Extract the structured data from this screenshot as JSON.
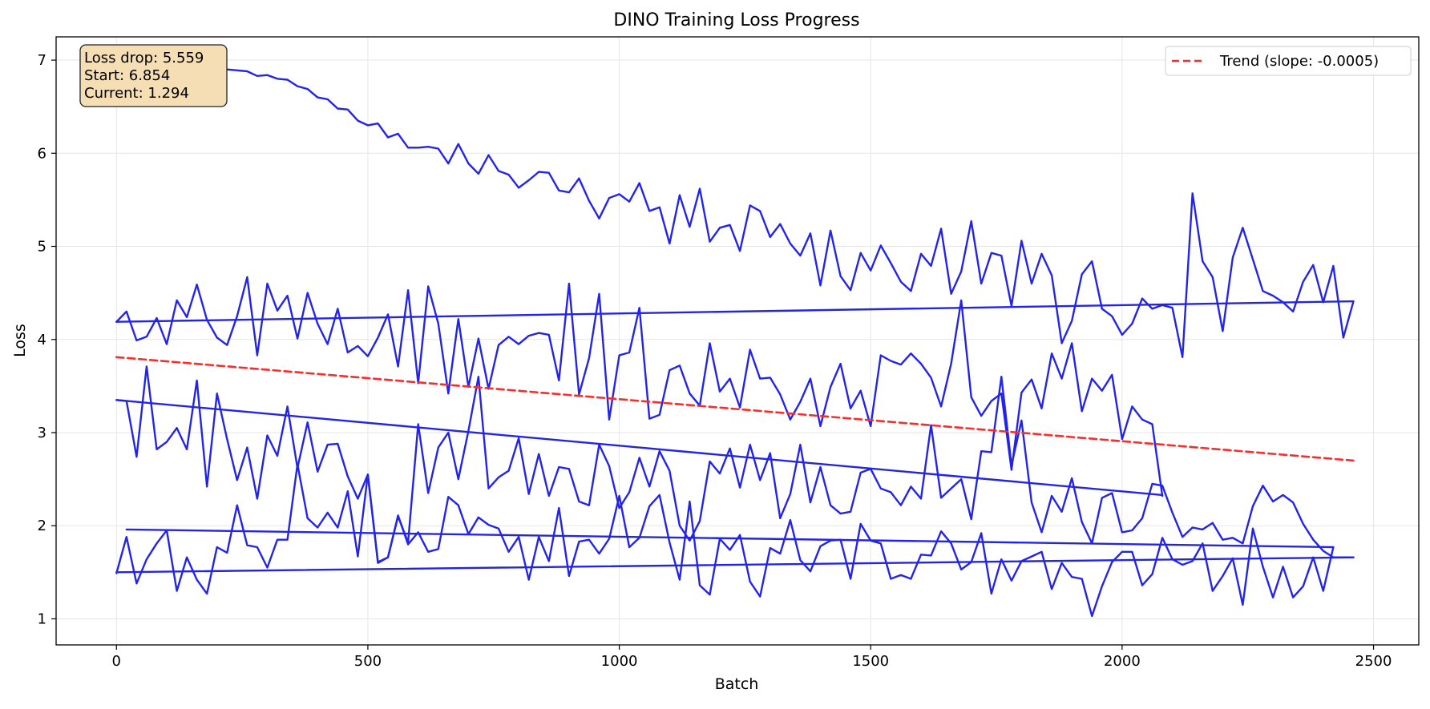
{
  "chart_data": {
    "type": "line",
    "title": "DINO Training Loss Progress",
    "xlabel": "Batch",
    "ylabel": "Loss",
    "xlim": [
      -120,
      2590
    ],
    "ylim": [
      0.72,
      7.25
    ],
    "xticks": [
      0,
      500,
      1000,
      1500,
      2000,
      2500
    ],
    "yticks": [
      1,
      2,
      3,
      4,
      5,
      6,
      7
    ],
    "grid": true,
    "legend_position": "top-right",
    "annotation": {
      "lines": [
        "Loss drop: 5.559",
        "Start: 6.854",
        "Current: 1.294"
      ],
      "position": "top-left",
      "background": "#f5deb3"
    },
    "series_color": "#2323ee",
    "trend_color": "#ff2a2a",
    "series": [
      {
        "x": [
          0,
          20,
          40,
          60,
          80,
          100,
          120,
          140,
          160,
          180,
          200,
          220,
          240,
          260,
          280,
          300,
          320,
          340,
          360,
          380,
          400,
          420,
          440,
          460,
          480,
          500,
          520,
          540,
          560,
          580,
          600,
          620,
          640,
          660,
          680,
          700,
          720,
          740,
          760,
          780,
          800,
          820,
          840,
          860,
          880,
          900,
          920,
          940,
          960,
          980,
          1000,
          1020,
          1040,
          1060,
          1080,
          1100,
          1120,
          1140,
          1160,
          1180,
          1200,
          1220,
          1240,
          1260,
          1280,
          1300,
          1320,
          1340,
          1360,
          1380,
          1400,
          1420,
          1440,
          1460,
          1480,
          1500,
          1520,
          1540,
          1560,
          1580,
          1600,
          1620,
          1640,
          1660,
          1680,
          1700,
          1720,
          1740,
          1760,
          1780,
          1800,
          1820,
          1840,
          1860,
          1880,
          1900,
          1920,
          1940,
          1960,
          1980,
          2000,
          2020,
          2040,
          2060,
          2080,
          2100,
          2120,
          2140,
          2160,
          2180,
          2200,
          2220,
          2240,
          2260,
          2280,
          2300,
          2320,
          2340,
          2360,
          2380,
          2400,
          2420,
          2440,
          2460
        ],
        "values": [
          6.95,
          6.97,
          6.96,
          6.95,
          6.97,
          6.96,
          6.95,
          6.94,
          6.95,
          6.93,
          6.91,
          6.9,
          6.89,
          6.88,
          6.83,
          6.84,
          6.8,
          6.79,
          6.72,
          6.69,
          6.6,
          6.58,
          6.48,
          6.47,
          6.35,
          6.3,
          6.32,
          6.17,
          6.21,
          6.06,
          6.06,
          6.07,
          6.05,
          5.89,
          6.1,
          5.89,
          5.78,
          5.98,
          5.81,
          5.77,
          5.63,
          5.71,
          5.8,
          5.79,
          5.6,
          5.58,
          5.73,
          5.49,
          5.3,
          5.52,
          5.56,
          5.48,
          5.68,
          5.38,
          5.42,
          5.03,
          5.55,
          5.21,
          5.62,
          5.05,
          5.2,
          5.23,
          4.95,
          5.44,
          5.38,
          5.1,
          5.24,
          5.03,
          4.9,
          5.14,
          4.58,
          5.17,
          4.68,
          4.53,
          4.93,
          4.74,
          5.01,
          4.82,
          4.62,
          4.52,
          4.92,
          4.79,
          5.19,
          4.49,
          4.73,
          5.27,
          4.6,
          4.93,
          4.9,
          4.36,
          5.06,
          4.6,
          4.92,
          4.69,
          3.96,
          4.2,
          4.7,
          4.84,
          4.33,
          4.25,
          4.05,
          4.17,
          4.44,
          4.33,
          4.37,
          4.34,
          3.81,
          5.57,
          4.84,
          4.67,
          4.09,
          4.88,
          5.2,
          4.86,
          4.52,
          4.47,
          4.4,
          4.3,
          4.62,
          4.8,
          4.4,
          4.79,
          4.02,
          4.41
        ]
      },
      {
        "x": [
          0,
          2460
        ],
        "values": [
          4.19,
          4.41
        ]
      },
      {
        "x": [
          0,
          20,
          40,
          60,
          80,
          100,
          120,
          140,
          160,
          180,
          200,
          220,
          240,
          260,
          280,
          300,
          320,
          340,
          360,
          380,
          400,
          420,
          440,
          460,
          480,
          500,
          520,
          540,
          560,
          580,
          600,
          620,
          640,
          660,
          680,
          700,
          720,
          740,
          760,
          780,
          800,
          820,
          840,
          860,
          880,
          900,
          920,
          940,
          960,
          980,
          1000,
          1020,
          1040,
          1060,
          1080,
          1100,
          1120,
          1140,
          1160,
          1180,
          1200,
          1220,
          1240,
          1260,
          1280,
          1300,
          1320,
          1340,
          1360,
          1380,
          1400,
          1420,
          1440,
          1460,
          1480,
          1500,
          1520,
          1540,
          1560,
          1580,
          1600,
          1620,
          1640,
          1660,
          1680,
          1700,
          1720,
          1740,
          1760,
          1780,
          1800,
          1820,
          1840,
          1860,
          1880,
          1900,
          1920,
          1940,
          1960,
          1980,
          2000,
          2020,
          2040,
          2060,
          2080
        ],
        "values": [
          4.19,
          4.3,
          3.99,
          4.03,
          4.23,
          3.95,
          4.42,
          4.24,
          4.59,
          4.21,
          4.02,
          3.94,
          4.25,
          4.67,
          3.83,
          4.6,
          4.31,
          4.47,
          4.01,
          4.5,
          4.17,
          3.95,
          4.33,
          3.86,
          3.93,
          3.82,
          4.02,
          4.27,
          3.71,
          4.53,
          3.53,
          4.57,
          4.17,
          3.42,
          4.22,
          3.49,
          4.01,
          3.47,
          3.94,
          4.03,
          3.95,
          4.04,
          4.07,
          4.05,
          3.56,
          4.6,
          3.41,
          3.8,
          4.49,
          3.14,
          3.83,
          3.86,
          4.34,
          3.15,
          3.19,
          3.67,
          3.72,
          3.42,
          3.29,
          3.96,
          3.44,
          3.58,
          3.27,
          3.89,
          3.58,
          3.59,
          3.41,
          3.14,
          3.33,
          3.58,
          3.07,
          3.49,
          3.74,
          3.26,
          3.45,
          3.07,
          3.83,
          3.77,
          3.73,
          3.85,
          3.74,
          3.59,
          3.28,
          3.74,
          4.42,
          3.38,
          3.18,
          3.34,
          3.42,
          2.6,
          3.43,
          3.57,
          3.26,
          3.85,
          3.58,
          3.96,
          3.23,
          3.58,
          3.45,
          3.62,
          2.93,
          3.28,
          3.14,
          3.09,
          2.32
        ]
      },
      {
        "x": [
          0,
          2080
        ],
        "values": [
          3.35,
          2.33
        ]
      },
      {
        "x": [
          0,
          20,
          40,
          60,
          80,
          100,
          120,
          140,
          160,
          180,
          200,
          220,
          240,
          260,
          280,
          300,
          320,
          340,
          360,
          380,
          400,
          420,
          440,
          460,
          480,
          500,
          520,
          540,
          560,
          580,
          600,
          620,
          640,
          660,
          680,
          700,
          720,
          740,
          760,
          780,
          800,
          820,
          840,
          860,
          880,
          900,
          920,
          940,
          960,
          980,
          1000,
          1020,
          1040,
          1060,
          1080,
          1100,
          1120,
          1140,
          1160,
          1180,
          1200,
          1220,
          1240,
          1260,
          1280,
          1300,
          1320,
          1340,
          1360,
          1380,
          1400,
          1420,
          1440,
          1460,
          1480,
          1500,
          1520,
          1540,
          1560,
          1580,
          1600,
          1620,
          1640,
          1660,
          1680,
          1700,
          1720,
          1740,
          1760,
          1780,
          1800,
          1820,
          1840,
          1860,
          1880,
          1900,
          1920,
          1940,
          1960,
          1980,
          2000,
          2020,
          2040,
          2060,
          2080,
          2100,
          2120,
          2140,
          2160,
          2180,
          2200,
          2220,
          2240,
          2260,
          2280,
          2300,
          2320,
          2340,
          2360,
          2380,
          2400,
          2420
        ],
        "values": [
          3.35,
          3.34,
          2.74,
          3.71,
          2.82,
          2.9,
          3.05,
          2.82,
          3.56,
          2.42,
          3.42,
          2.93,
          2.49,
          2.84,
          2.29,
          2.97,
          2.75,
          3.28,
          2.62,
          3.11,
          2.58,
          2.87,
          2.88,
          2.53,
          2.29,
          2.55,
          1.6,
          1.66,
          2.11,
          1.8,
          1.93,
          1.72,
          1.75,
          2.31,
          2.22,
          1.91,
          2.09,
          2.01,
          1.97,
          1.72,
          1.88,
          1.42,
          1.88,
          1.62,
          2.19,
          1.46,
          1.83,
          1.85,
          1.7,
          1.86,
          2.32,
          1.77,
          1.87,
          2.21,
          2.33,
          1.82,
          1.42,
          2.26,
          1.36,
          1.26,
          1.86,
          1.74,
          1.9,
          1.4,
          1.24,
          1.76,
          1.7,
          2.06,
          1.63,
          1.51,
          1.78,
          1.84,
          1.85,
          1.43,
          2.02,
          1.84,
          1.81,
          1.43,
          1.47,
          1.43,
          1.69,
          1.68,
          1.94,
          1.81,
          1.53,
          1.61,
          1.92,
          1.27,
          1.64,
          1.41,
          1.62,
          1.67,
          1.72,
          1.32,
          1.6,
          1.45,
          1.43,
          1.03,
          1.35,
          1.61,
          1.72,
          1.72,
          1.36,
          1.48,
          1.87,
          1.64,
          1.58,
          1.62,
          1.81,
          1.3,
          1.46,
          1.65,
          1.15,
          1.97,
          1.56,
          1.23,
          1.56,
          1.23,
          1.35,
          1.66,
          1.3,
          1.77
        ]
      },
      {
        "x": [
          20,
          2420
        ],
        "values": [
          1.96,
          1.77
        ]
      },
      {
        "x": [
          0,
          20,
          40,
          60,
          80,
          100,
          120,
          140,
          160,
          180,
          200,
          220,
          240,
          260,
          280,
          300,
          320,
          340,
          360,
          380,
          400,
          420,
          440,
          460,
          480,
          500,
          520,
          540,
          560,
          580,
          600,
          620,
          640,
          660,
          680,
          700,
          720,
          740,
          760,
          780,
          800,
          820,
          840,
          860,
          880,
          900,
          920,
          940,
          960,
          980,
          1000,
          1020,
          1040,
          1060,
          1080,
          1100,
          1120,
          1140,
          1160,
          1180,
          1200,
          1220,
          1240,
          1260,
          1280,
          1300,
          1320,
          1340,
          1360,
          1380,
          1400,
          1420,
          1440,
          1460,
          1480,
          1500,
          1520,
          1540,
          1560,
          1580,
          1600,
          1620,
          1640,
          1660,
          1680,
          1700,
          1720,
          1740,
          1760,
          1780,
          1800,
          1820,
          1840,
          1860,
          1880,
          1900,
          1920,
          1940,
          1960,
          1980,
          2000,
          2020,
          2040,
          2060,
          2080,
          2100,
          2120,
          2140,
          2160,
          2180,
          2200,
          2220,
          2240,
          2260,
          2280,
          2300,
          2320,
          2340,
          2360,
          2380,
          2400,
          2420,
          2440,
          2460
        ],
        "values": [
          1.49,
          1.88,
          1.38,
          1.64,
          1.81,
          1.95,
          1.3,
          1.66,
          1.42,
          1.27,
          1.77,
          1.71,
          2.22,
          1.79,
          1.77,
          1.55,
          1.85,
          1.85,
          2.66,
          2.08,
          1.98,
          2.14,
          1.98,
          2.37,
          1.67,
          2.55,
          1.61,
          1.66,
          2.1,
          1.82,
          3.09,
          2.35,
          2.84,
          3.0,
          2.5,
          3.02,
          3.6,
          2.4,
          2.52,
          2.59,
          2.94,
          2.34,
          2.77,
          2.32,
          2.63,
          2.61,
          2.26,
          2.22,
          2.87,
          2.64,
          2.19,
          2.36,
          2.73,
          2.42,
          2.8,
          2.59,
          2.0,
          1.84,
          2.05,
          2.69,
          2.56,
          2.83,
          2.41,
          2.87,
          2.49,
          2.78,
          2.08,
          2.34,
          2.87,
          2.25,
          2.63,
          2.22,
          2.13,
          2.15,
          2.57,
          2.61,
          2.4,
          2.36,
          2.22,
          2.42,
          2.29,
          3.08,
          2.3,
          2.4,
          2.5,
          2.07,
          2.8,
          2.79,
          3.6,
          2.65,
          3.13,
          2.25,
          1.93,
          2.32,
          2.15,
          2.51,
          2.04,
          1.81,
          2.3,
          2.35,
          1.93,
          1.95,
          2.08,
          2.45,
          2.43,
          2.14,
          1.88,
          1.98,
          1.96,
          2.03,
          1.85,
          1.87,
          1.81,
          2.21,
          2.43,
          2.26,
          2.33,
          2.25,
          2.02,
          1.85,
          1.73,
          1.66,
          1.66,
          1.66
        ]
      },
      {
        "x": [
          0,
          2460
        ],
        "values": [
          1.5,
          1.66
        ]
      },
      {
        "name": "Trend (slope: -0.0005)",
        "style": "dashed",
        "x": [
          0,
          2460
        ],
        "values": [
          3.81,
          2.7
        ]
      }
    ]
  }
}
